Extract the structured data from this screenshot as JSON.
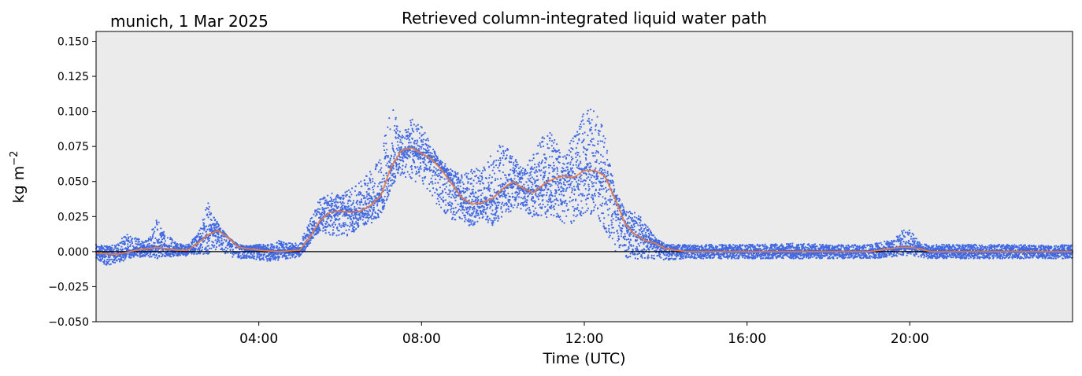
{
  "chart_data": {
    "type": "scatter",
    "title": "Retrieved column-integrated liquid water path",
    "location_label": "munich, 1 Mar 2025",
    "xlabel": "Time (UTC)",
    "ylabel": "kg m",
    "ylabel_superscript": "−2",
    "xlim": [
      0,
      24
    ],
    "ylim": [
      -0.05,
      0.157
    ],
    "x_ticks": [
      {
        "value": 4,
        "label": "04:00"
      },
      {
        "value": 8,
        "label": "08:00"
      },
      {
        "value": 12,
        "label": "12:00"
      },
      {
        "value": 16,
        "label": "16:00"
      },
      {
        "value": 20,
        "label": "20:00"
      }
    ],
    "y_ticks": [
      {
        "value": 0.15,
        "label": "0.150"
      },
      {
        "value": 0.125,
        "label": "0.125"
      },
      {
        "value": 0.1,
        "label": "0.100"
      },
      {
        "value": 0.075,
        "label": "0.075"
      },
      {
        "value": 0.05,
        "label": "0.050"
      },
      {
        "value": 0.025,
        "label": "0.025"
      },
      {
        "value": 0,
        "label": "0.000"
      },
      {
        "value": -0.025,
        "label": "−0.025"
      },
      {
        "value": -0.05,
        "label": "−0.050"
      }
    ],
    "grid": false,
    "zero_line": true,
    "colors": {
      "scatter": "#4169e1",
      "smoothed": "#f07c3c",
      "background": "#ebebeb"
    },
    "series": [
      {
        "kind": "scatter-envelope",
        "x": [
          0,
          0.25,
          0.5,
          0.75,
          1.0,
          1.25,
          1.5,
          1.75,
          2.0,
          2.25,
          2.5,
          2.75,
          3.0,
          3.25,
          3.5,
          3.75,
          4.0,
          4.25,
          4.5,
          4.75,
          5.0,
          5.25,
          5.5,
          5.75,
          6.0,
          6.25,
          6.5,
          6.75,
          7.0,
          7.25,
          7.5,
          7.75,
          8.0,
          8.25,
          8.5,
          8.75,
          9.0,
          9.25,
          9.5,
          9.75,
          10.0,
          10.25,
          10.5,
          10.75,
          11.0,
          11.25,
          11.5,
          11.75,
          12.0,
          12.25,
          12.5,
          12.75,
          13.0,
          13.25,
          13.5,
          13.75,
          14.0,
          14.5,
          15.0,
          16.0,
          17.0,
          18.0,
          19.0,
          19.5,
          19.75,
          20.0,
          20.25,
          20.5,
          21.0,
          22.0,
          23.0,
          24.0
        ],
        "high": [
          0.005,
          0.004,
          0.005,
          0.013,
          0.01,
          0.008,
          0.024,
          0.012,
          0.006,
          0.005,
          0.012,
          0.035,
          0.02,
          0.01,
          0.005,
          0.004,
          0.005,
          0.005,
          0.008,
          0.006,
          0.006,
          0.022,
          0.038,
          0.042,
          0.04,
          0.045,
          0.05,
          0.058,
          0.068,
          0.105,
          0.088,
          0.095,
          0.09,
          0.075,
          0.065,
          0.058,
          0.055,
          0.06,
          0.058,
          0.075,
          0.078,
          0.068,
          0.06,
          0.07,
          0.09,
          0.088,
          0.07,
          0.085,
          0.1,
          0.106,
          0.085,
          0.045,
          0.03,
          0.03,
          0.02,
          0.01,
          0.005,
          0.005,
          0.005,
          0.005,
          0.006,
          0.005,
          0.005,
          0.008,
          0.015,
          0.016,
          0.006,
          0.005,
          0.005,
          0.005,
          0.005,
          0.005
        ],
        "low": [
          -0.005,
          -0.01,
          -0.008,
          -0.006,
          -0.004,
          -0.004,
          -0.005,
          -0.004,
          -0.003,
          -0.003,
          -0.002,
          -0.002,
          0.002,
          -0.003,
          -0.005,
          -0.005,
          -0.006,
          -0.007,
          -0.006,
          -0.005,
          -0.004,
          0.005,
          0.015,
          0.012,
          0.01,
          0.012,
          0.018,
          0.02,
          0.025,
          0.045,
          0.055,
          0.05,
          0.048,
          0.04,
          0.028,
          0.022,
          0.02,
          0.018,
          0.024,
          0.018,
          0.025,
          0.03,
          0.03,
          0.024,
          0.022,
          0.025,
          0.02,
          0.02,
          0.025,
          0.025,
          0.015,
          0.0,
          -0.005,
          -0.006,
          -0.006,
          -0.005,
          -0.006,
          -0.005,
          -0.005,
          -0.005,
          -0.005,
          -0.005,
          -0.005,
          -0.004,
          -0.003,
          -0.003,
          -0.004,
          -0.005,
          -0.005,
          -0.005,
          -0.005,
          -0.005
        ]
      },
      {
        "kind": "smoothed-line",
        "x": [
          0,
          0.5,
          1.0,
          1.25,
          1.5,
          1.75,
          2.0,
          2.25,
          2.5,
          2.75,
          3.0,
          3.25,
          3.5,
          4.0,
          4.5,
          5.0,
          5.25,
          5.5,
          5.75,
          6.0,
          6.25,
          6.5,
          6.75,
          7.0,
          7.25,
          7.5,
          7.75,
          8.0,
          8.25,
          8.5,
          8.75,
          9.0,
          9.25,
          9.5,
          9.75,
          10.0,
          10.25,
          10.5,
          10.75,
          11.0,
          11.25,
          11.5,
          11.75,
          12.0,
          12.25,
          12.5,
          12.75,
          13.0,
          13.25,
          13.5,
          13.75,
          14.0,
          14.5,
          15.0,
          16.0,
          17.0,
          18.0,
          19.0,
          19.5,
          19.75,
          20.0,
          20.25,
          20.5,
          21.0,
          22.0,
          23.0,
          24.0
        ],
        "y": [
          -0.001,
          -0.002,
          0.001,
          0.002,
          0.003,
          0.002,
          0.001,
          0.001,
          0.006,
          0.012,
          0.015,
          0.01,
          0.003,
          0.001,
          0.0,
          0.001,
          0.01,
          0.022,
          0.028,
          0.029,
          0.028,
          0.029,
          0.033,
          0.04,
          0.06,
          0.072,
          0.074,
          0.07,
          0.066,
          0.058,
          0.048,
          0.038,
          0.034,
          0.035,
          0.038,
          0.045,
          0.05,
          0.045,
          0.042,
          0.048,
          0.052,
          0.054,
          0.053,
          0.058,
          0.058,
          0.054,
          0.038,
          0.02,
          0.012,
          0.008,
          0.006,
          0.002,
          0.0,
          0.0,
          0.0,
          0.0,
          0.0,
          0.0,
          0.002,
          0.003,
          0.003,
          0.002,
          0.0,
          0.0,
          0.0,
          0.0,
          0.0
        ]
      }
    ]
  }
}
